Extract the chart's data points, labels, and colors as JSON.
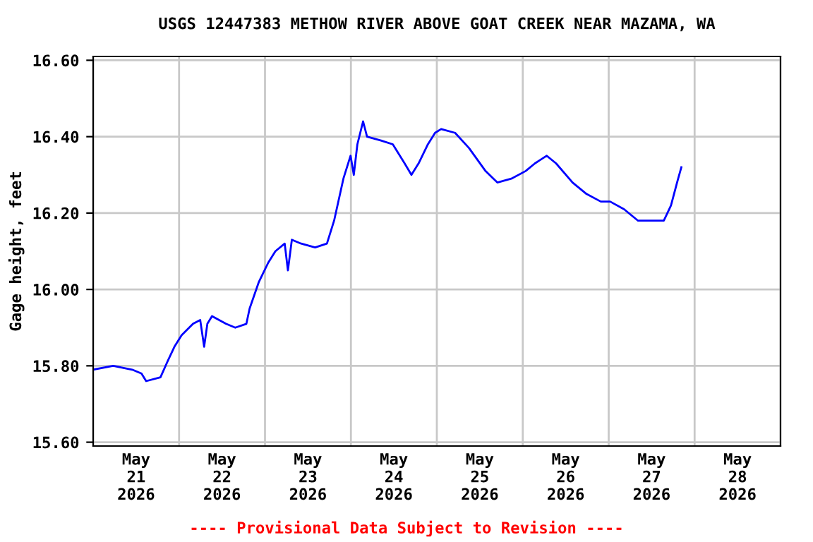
{
  "chart_data": {
    "type": "line",
    "title": "USGS 12447383 METHOW RIVER ABOVE GOAT CREEK NEAR MAZAMA, WA",
    "ylabel": "Gage height, feet",
    "annotations": [
      "---- Provisional Data Subject to Revision ----"
    ],
    "grid": true,
    "marker": "none",
    "line_style": "solid",
    "xlim": [
      "2026-05-21T00:00",
      "2026-05-29T00:00"
    ],
    "xticks": [
      {
        "value": "2026-05-21T00:00",
        "label": null
      },
      {
        "value": "2026-05-21T12:00",
        "label": "May\n21\n2026"
      },
      {
        "value": "2026-05-22T00:00",
        "label": null
      },
      {
        "value": "2026-05-22T12:00",
        "label": "May\n22\n2026"
      },
      {
        "value": "2026-05-23T00:00",
        "label": null
      },
      {
        "value": "2026-05-23T12:00",
        "label": "May\n23\n2026"
      },
      {
        "value": "2026-05-24T00:00",
        "label": null
      },
      {
        "value": "2026-05-24T12:00",
        "label": "May\n24\n2026"
      },
      {
        "value": "2026-05-25T00:00",
        "label": null
      },
      {
        "value": "2026-05-25T12:00",
        "label": "May\n25\n2026"
      },
      {
        "value": "2026-05-26T00:00",
        "label": null
      },
      {
        "value": "2026-05-26T12:00",
        "label": "May\n26\n2026"
      },
      {
        "value": "2026-05-27T00:00",
        "label": null
      },
      {
        "value": "2026-05-27T12:00",
        "label": "May\n27\n2026"
      },
      {
        "value": "2026-05-28T00:00",
        "label": null
      },
      {
        "value": "2026-05-28T12:00",
        "label": "May\n28\n2026"
      },
      {
        "value": "2026-05-29T00:00",
        "label": null
      }
    ],
    "ylim": [
      15.59,
      16.61
    ],
    "yticks": [
      {
        "value": 15.6,
        "label": "15.60"
      },
      {
        "value": 15.8,
        "label": "15.80"
      },
      {
        "value": 16.0,
        "label": "16.00"
      },
      {
        "value": 16.2,
        "label": "16.20"
      },
      {
        "value": 16.4,
        "label": "16.40"
      },
      {
        "value": 16.6,
        "label": "16.60"
      }
    ],
    "series": [
      {
        "color": "#0000ff",
        "x": [
          "2026-05-21T00:00",
          "2026-05-21T05:36",
          "2026-05-21T10:54",
          "2026-05-21T13:30",
          "2026-05-21T14:48",
          "2026-05-21T18:48",
          "2026-05-21T20:42",
          "2026-05-21T22:42",
          "2026-05-22T00:42",
          "2026-05-22T03:54",
          "2026-05-22T05:54",
          "2026-05-22T07:00",
          "2026-05-22T07:54",
          "2026-05-22T09:12",
          "2026-05-22T13:06",
          "2026-05-22T15:42",
          "2026-05-22T18:48",
          "2026-05-22T19:42",
          "2026-05-22T22:18",
          "2026-05-23T00:54",
          "2026-05-23T02:54",
          "2026-05-23T05:30",
          "2026-05-23T06:24",
          "2026-05-23T07:30",
          "2026-05-23T10:06",
          "2026-05-23T14:00",
          "2026-05-23T17:18",
          "2026-05-23T19:18",
          "2026-05-23T21:54",
          "2026-05-23T23:54",
          "2026-05-24T00:48",
          "2026-05-24T01:48",
          "2026-05-24T03:24",
          "2026-05-24T04:30",
          "2026-05-24T08:24",
          "2026-05-24T11:42",
          "2026-05-24T15:00",
          "2026-05-24T16:54",
          "2026-05-24T18:54",
          "2026-05-24T21:30",
          "2026-05-24T23:30",
          "2026-05-25T01:12",
          "2026-05-25T05:06",
          "2026-05-25T09:00",
          "2026-05-25T13:36",
          "2026-05-25T16:54",
          "2026-05-25T20:48",
          "2026-05-26T00:48",
          "2026-05-26T03:24",
          "2026-05-26T06:42",
          "2026-05-26T09:18",
          "2026-05-26T13:54",
          "2026-05-26T17:48",
          "2026-05-26T21:48",
          "2026-05-27T00:24",
          "2026-05-27T04:18",
          "2026-05-27T08:12",
          "2026-05-27T13:30",
          "2026-05-27T15:24",
          "2026-05-27T17:24",
          "2026-05-27T19:06",
          "2026-05-27T20:18"
        ],
        "values": [
          15.79,
          15.8,
          15.79,
          15.78,
          15.76,
          15.77,
          15.81,
          15.85,
          15.88,
          15.91,
          15.92,
          15.85,
          15.91,
          15.93,
          15.91,
          15.9,
          15.91,
          15.95,
          16.02,
          16.07,
          16.1,
          16.12,
          16.05,
          16.13,
          16.12,
          16.11,
          16.12,
          16.18,
          16.29,
          16.35,
          16.3,
          16.38,
          16.44,
          16.4,
          16.39,
          16.38,
          16.33,
          16.3,
          16.33,
          16.38,
          16.41,
          16.42,
          16.41,
          16.37,
          16.31,
          16.28,
          16.29,
          16.31,
          16.33,
          16.35,
          16.33,
          16.28,
          16.25,
          16.23,
          16.23,
          16.21,
          16.18,
          16.18,
          16.18,
          16.22,
          16.28,
          16.32
        ]
      }
    ]
  }
}
